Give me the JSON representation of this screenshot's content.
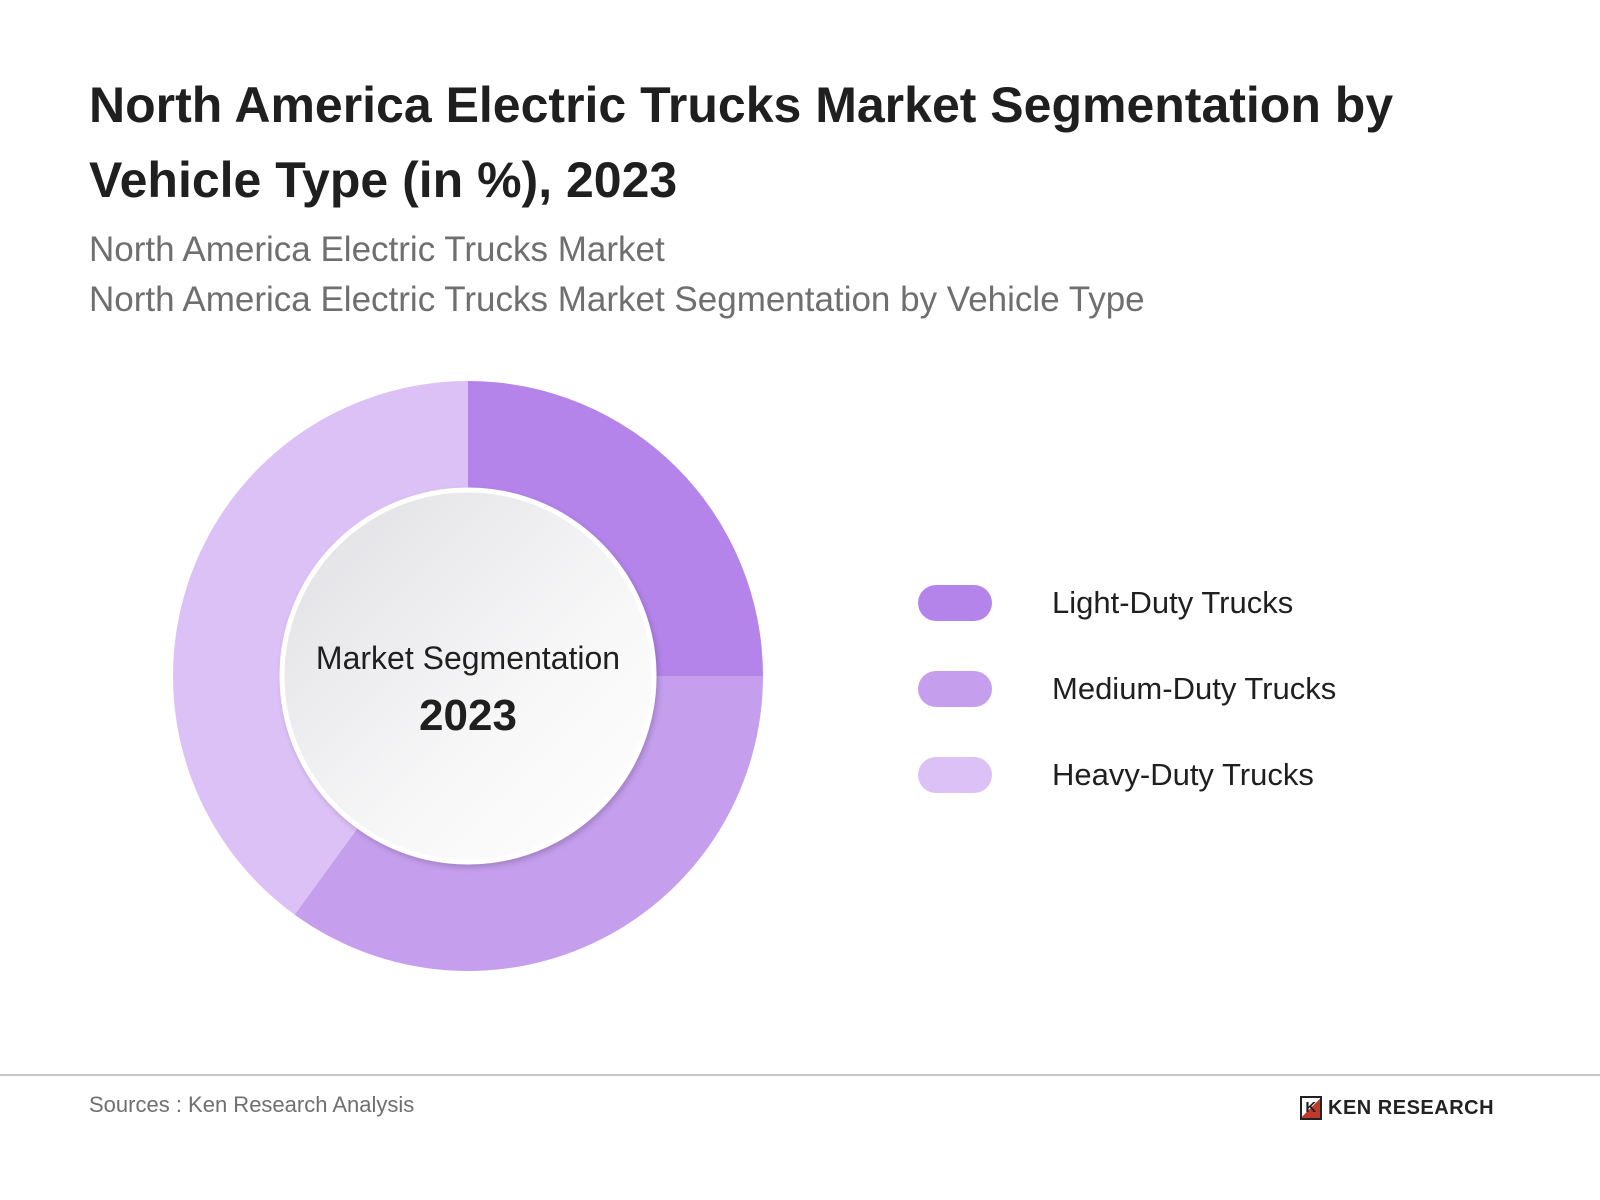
{
  "header": {
    "title": "North America Electric Trucks Market Segmentation by Vehicle Type (in %), 2023",
    "subtitle_1": "North America Electric Trucks Market",
    "subtitle_2": "North America Electric Trucks Market Segmentation by Vehicle Type"
  },
  "chart_data": {
    "type": "pie",
    "variant": "donut",
    "center_label": "Market Segmentation",
    "center_value": "2023",
    "categories": [
      "Light-Duty Trucks",
      "Medium-Duty Trucks",
      "Heavy-Duty Trucks"
    ],
    "values": [
      25,
      35,
      40
    ],
    "colors": [
      "#b484ea",
      "#c59eee",
      "#dcc1f6"
    ],
    "legend_position": "right"
  },
  "footer": {
    "source": "Sources : Ken Research Analysis",
    "logo_text": "KEN RESEARCH"
  }
}
